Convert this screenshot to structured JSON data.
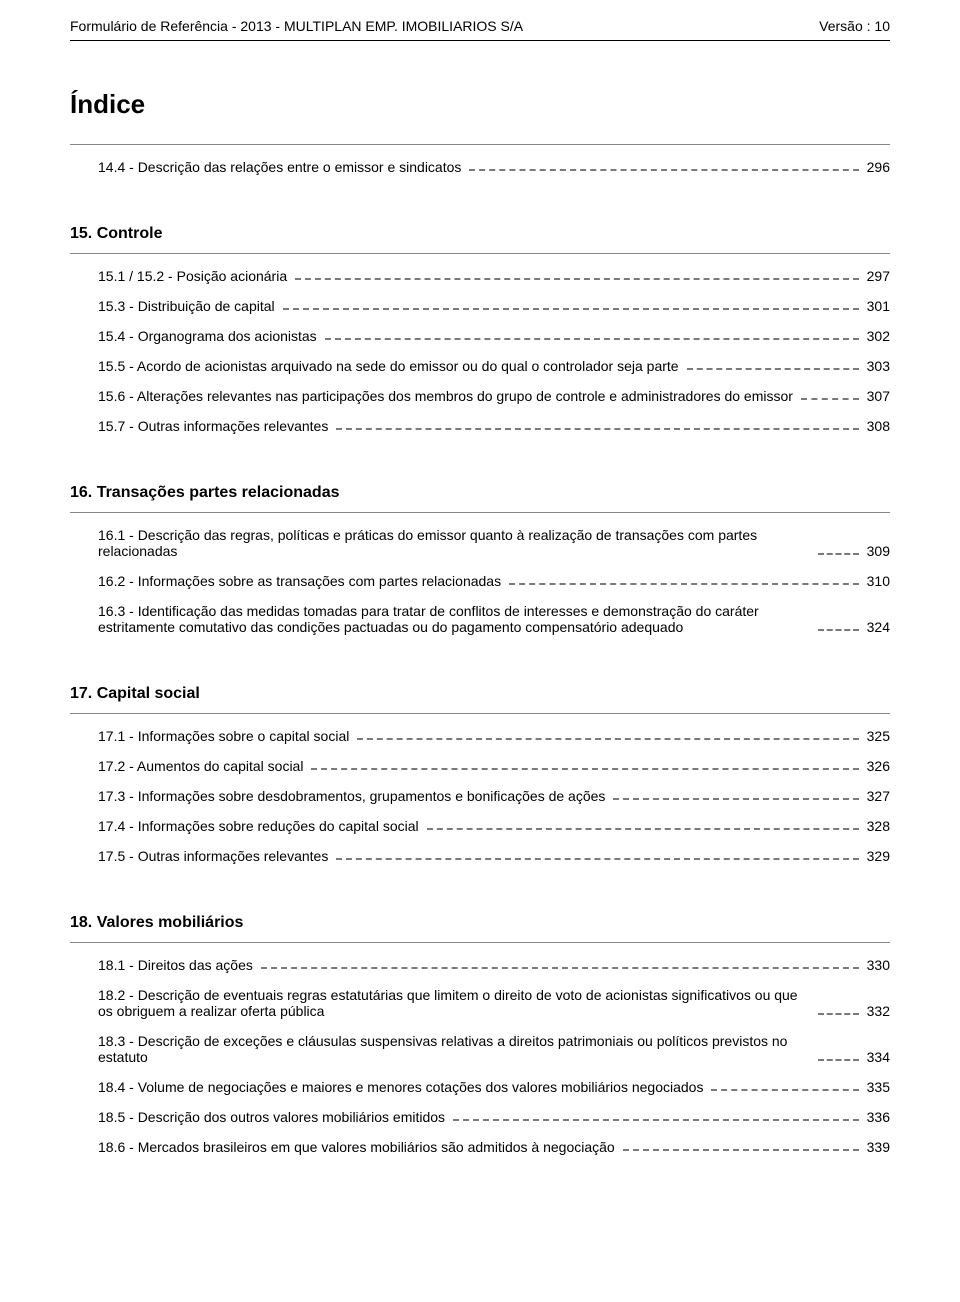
{
  "header": {
    "left": "Formulário de Referência - 2013 - MULTIPLAN EMP. IMOBILIARIOS S/A",
    "right": "Versão : 10"
  },
  "index_title": "Índice",
  "sections": [
    {
      "title": null,
      "items": [
        {
          "label": "14.4 - Descrição das relações entre o emissor e sindicatos",
          "page": "296"
        }
      ]
    },
    {
      "title": "15. Controle",
      "items": [
        {
          "label": "15.1 / 15.2 - Posição acionária",
          "page": "297"
        },
        {
          "label": "15.3 - Distribuição de capital",
          "page": "301"
        },
        {
          "label": "15.4 - Organograma dos acionistas",
          "page": "302"
        },
        {
          "label": "15.5 - Acordo de acionistas arquivado na sede do emissor ou do qual o controlador seja parte",
          "page": "303"
        },
        {
          "label": "15.6 - Alterações relevantes nas participações dos membros do grupo de controle e administradores do emissor",
          "page": "307"
        },
        {
          "label": "15.7 - Outras informações relevantes",
          "page": "308"
        }
      ]
    },
    {
      "title": "16. Transações partes relacionadas",
      "items": [
        {
          "label": "16.1 - Descrição das regras, políticas e práticas do emissor quanto à realização de transações com partes relacionadas",
          "page": "309"
        },
        {
          "label": "16.2 - Informações sobre as transações com partes relacionadas",
          "page": "310"
        },
        {
          "label": "16.3 - Identificação das medidas tomadas para tratar de conflitos de interesses e demonstração do caráter estritamente comutativo das condições pactuadas ou do pagamento compensatório adequado",
          "page": "324"
        }
      ]
    },
    {
      "title": "17. Capital social",
      "items": [
        {
          "label": "17.1 - Informações sobre o capital social",
          "page": "325"
        },
        {
          "label": "17.2 - Aumentos do capital social",
          "page": "326"
        },
        {
          "label": "17.3 - Informações sobre desdobramentos, grupamentos e bonificações de ações",
          "page": "327"
        },
        {
          "label": "17.4 - Informações sobre reduções do capital social",
          "page": "328"
        },
        {
          "label": "17.5 - Outras informações relevantes",
          "page": "329"
        }
      ]
    },
    {
      "title": "18. Valores mobiliários",
      "items": [
        {
          "label": "18.1 - Direitos das ações",
          "page": "330"
        },
        {
          "label": "18.2 - Descrição de eventuais regras estatutárias que limitem o direito de voto de acionistas significativos ou que os obriguem a realizar oferta pública",
          "page": "332"
        },
        {
          "label": "18.3 - Descrição de exceções e cláusulas suspensivas relativas a direitos patrimoniais ou políticos previstos no estatuto",
          "page": "334"
        },
        {
          "label": "18.4 - Volume de negociações e maiores e menores cotações dos valores mobiliários negociados",
          "page": "335"
        },
        {
          "label": "18.5 - Descrição dos outros valores mobiliários emitidos",
          "page": "336"
        },
        {
          "label": "18.6 - Mercados brasileiros em que valores mobiliários são admitidos à negociação",
          "page": "339"
        }
      ]
    }
  ]
}
